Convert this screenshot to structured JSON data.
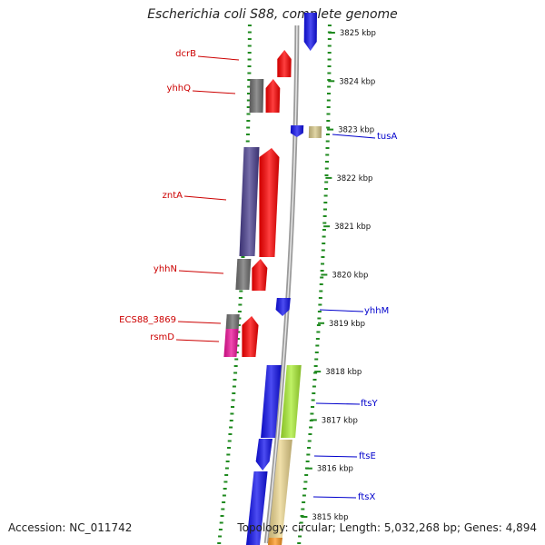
{
  "title": "Escherichia coli S88, complete genome",
  "footer": {
    "accession": "Accession: NC_011742",
    "summary": "Topology: circular; Length: 5,032,268 bp; Genes: 4,894"
  },
  "colors": {
    "backbone": "#9a9a9a",
    "tick": "#1f8a1f",
    "forward_label": "#cc0000",
    "reverse_label": "#0000cc",
    "red": "#ff0000",
    "gray": "#6e6e6e",
    "purple": "#4a3f8f",
    "pink": "#ee1199",
    "blue": "#1111ee",
    "khaki": "#d8c98a",
    "lime": "#aaee33",
    "wheat": "#ecd68e",
    "orange": "#ff9922"
  },
  "scale": [
    {
      "kbp": 3825,
      "label": "3825 kbp"
    },
    {
      "kbp": 3824,
      "label": "3824 kbp"
    },
    {
      "kbp": 3823,
      "label": "3823 kbp"
    },
    {
      "kbp": 3822,
      "label": "3822 kbp"
    },
    {
      "kbp": 3821,
      "label": "3821 kbp"
    },
    {
      "kbp": 3820,
      "label": "3820 kbp"
    },
    {
      "kbp": 3819,
      "label": "3819 kbp"
    },
    {
      "kbp": 3818,
      "label": "3818 kbp"
    },
    {
      "kbp": 3817,
      "label": "3817 kbp"
    },
    {
      "kbp": 3816,
      "label": "3816 kbp"
    },
    {
      "kbp": 3815,
      "label": "3815 kbp"
    }
  ],
  "gene_labels": [
    {
      "name": "dcrB",
      "strand": "forward"
    },
    {
      "name": "yhhQ",
      "strand": "forward"
    },
    {
      "name": "tusA",
      "strand": "reverse"
    },
    {
      "name": "zntA",
      "strand": "forward"
    },
    {
      "name": "yhhN",
      "strand": "forward"
    },
    {
      "name": "yhhM",
      "strand": "reverse"
    },
    {
      "name": "ECS88_3869",
      "strand": "forward"
    },
    {
      "name": "rsmD",
      "strand": "forward"
    },
    {
      "name": "ftsY",
      "strand": "reverse"
    },
    {
      "name": "ftsE",
      "strand": "reverse"
    },
    {
      "name": "ftsX",
      "strand": "reverse"
    }
  ]
}
